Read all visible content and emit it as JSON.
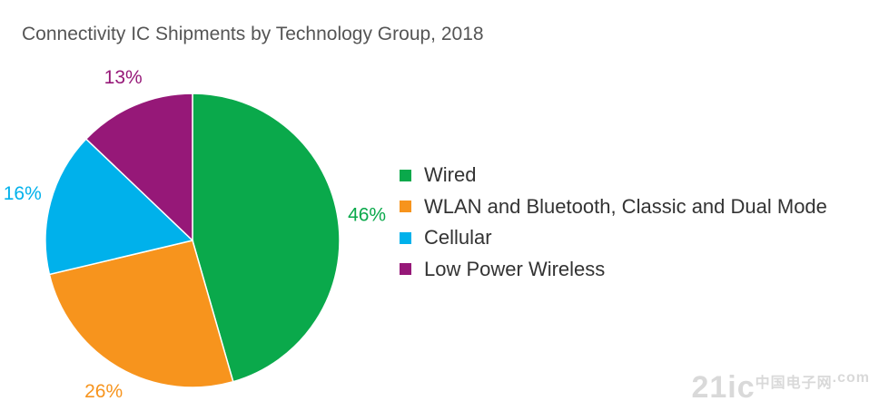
{
  "chart_data": {
    "type": "pie",
    "title": "Connectivity IC Shipments by Technology Group, 2018",
    "categories": [
      "Wired",
      "WLAN and Bluetooth, Classic and Dual Mode",
      "Cellular",
      "Low Power Wireless"
    ],
    "values": [
      46,
      26,
      16,
      13
    ],
    "labels": [
      "46%",
      "26%",
      "16%",
      "13%"
    ],
    "colors": [
      "#0aa94b",
      "#f7941d",
      "#00b1eb",
      "#961878"
    ],
    "legend_position": "right"
  },
  "watermark": {
    "main": "21ic",
    "sub": "中国电子网",
    "domain": ".com"
  }
}
